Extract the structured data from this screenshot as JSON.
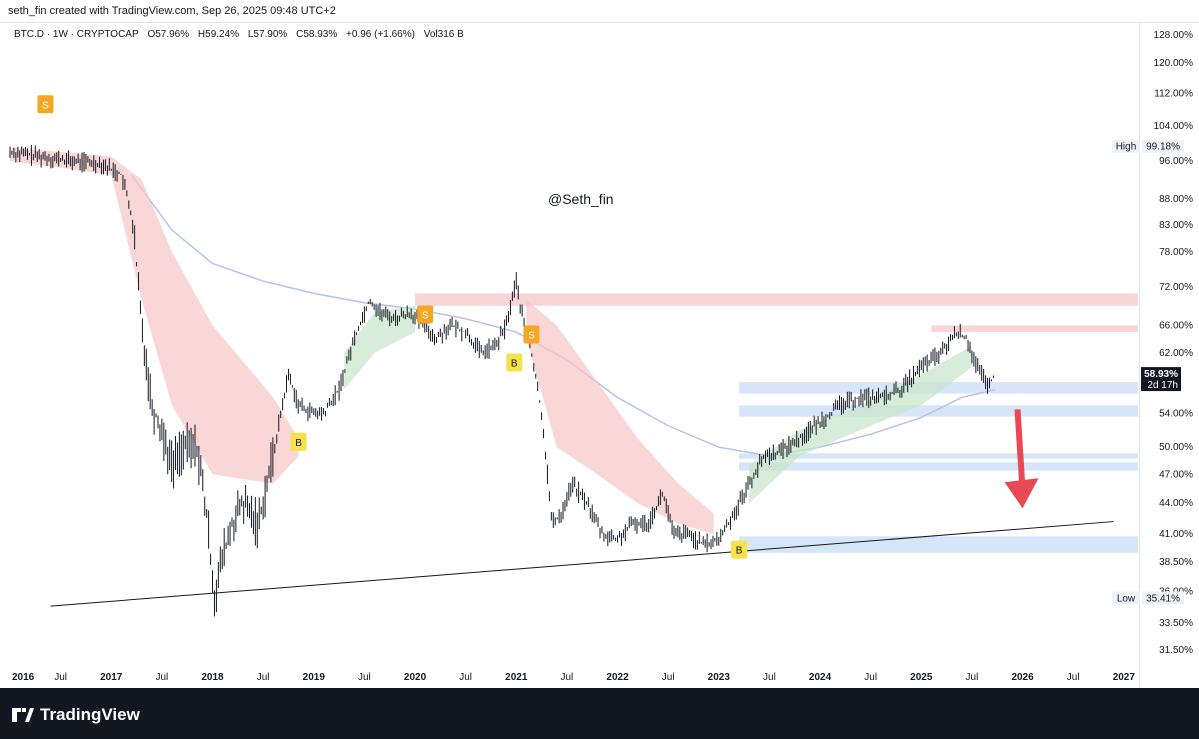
{
  "header": {
    "caption": "seth_fin created with TradingView.com, Sep 26, 2025 09:48 UTC+2"
  },
  "legend": {
    "symbol": "BTC.D · 1W · CRYPTOCAP",
    "open": "O57.96%",
    "high": "H59.24%",
    "low": "L57.90%",
    "close": "C58.93%",
    "change": "+0.96 (+1.66%)",
    "volume": "Vol316 B"
  },
  "watermark": "@Seth_fin",
  "footer": {
    "brand": "TradingView"
  },
  "price_tags": {
    "high_label": "High",
    "high_value": "99.18%",
    "low_label": "Low",
    "low_value": "35.41%",
    "current_value": "58.93%",
    "countdown": "2d 17h"
  },
  "colors": {
    "candles": "#131722",
    "upper_band": "#f7c6c6",
    "lower_band": "#c8e6c9",
    "ma": "#b6c1ef",
    "zone_red": "#f7cfd1",
    "zone_blue": "#cfe0f7",
    "sell_marker": "#f5a623",
    "buy_marker": "#f6e24a",
    "arrow": "#e84955",
    "trendline": "#131722"
  },
  "chart_data": {
    "type": "line",
    "title": "BTC.D · 1W · CRYPTOCAP",
    "y_scale": "log",
    "ylim": [
      30.5,
      130
    ],
    "xlim": [
      "2016-01",
      "2027-03"
    ],
    "y_ticks": [
      "128.00%",
      "120.00%",
      "112.00%",
      "104.00%",
      "96.00%",
      "88.00%",
      "83.00%",
      "78.00%",
      "72.00%",
      "66.00%",
      "62.00%",
      "54.00%",
      "50.00%",
      "47.00%",
      "44.00%",
      "41.00%",
      "38.50%",
      "36.00%",
      "33.50%",
      "31.50%"
    ],
    "y_tick_values": [
      128,
      120,
      112,
      104,
      96,
      88,
      83,
      78,
      72,
      66,
      62,
      54,
      50,
      47,
      44,
      41,
      38.5,
      36,
      33.5,
      31.5
    ],
    "x_ticks": [
      {
        "label": "2016",
        "x": 2016.0,
        "year": true
      },
      {
        "label": "Jul",
        "x": 2016.5,
        "year": false
      },
      {
        "label": "2017",
        "x": 2017.0,
        "year": true
      },
      {
        "label": "Jul",
        "x": 2017.5,
        "year": false
      },
      {
        "label": "2018",
        "x": 2018.0,
        "year": true
      },
      {
        "label": "Jul",
        "x": 2018.5,
        "year": false
      },
      {
        "label": "2019",
        "x": 2019.0,
        "year": true
      },
      {
        "label": "Jul",
        "x": 2019.5,
        "year": false
      },
      {
        "label": "2020",
        "x": 2020.0,
        "year": true
      },
      {
        "label": "Jul",
        "x": 2020.5,
        "year": false
      },
      {
        "label": "2021",
        "x": 2021.0,
        "year": true
      },
      {
        "label": "Jul",
        "x": 2021.5,
        "year": false
      },
      {
        "label": "2022",
        "x": 2022.0,
        "year": true
      },
      {
        "label": "Jul",
        "x": 2022.5,
        "year": false
      },
      {
        "label": "2023",
        "x": 2023.0,
        "year": true
      },
      {
        "label": "Jul",
        "x": 2023.5,
        "year": false
      },
      {
        "label": "2024",
        "x": 2024.0,
        "year": true
      },
      {
        "label": "Jul",
        "x": 2024.5,
        "year": false
      },
      {
        "label": "2025",
        "x": 2025.0,
        "year": true
      },
      {
        "label": "Jul",
        "x": 2025.5,
        "year": false
      },
      {
        "label": "2026",
        "x": 2026.0,
        "year": true
      },
      {
        "label": "Jul",
        "x": 2026.5,
        "year": false
      },
      {
        "label": "2027",
        "x": 2027.0,
        "year": true
      }
    ],
    "series": [
      {
        "x": [
          2016.0,
          2016.3,
          2016.6,
          2016.9,
          2017.1,
          2017.2,
          2017.3,
          2017.4,
          2017.5,
          2017.6,
          2017.7,
          2017.85,
          2017.95,
          2018.02,
          2018.1,
          2018.2,
          2018.3,
          2018.45,
          2018.6,
          2018.75,
          2018.85,
          2019.0,
          2019.1,
          2019.25,
          2019.4,
          2019.55,
          2019.65,
          2019.8,
          2019.95,
          2020.1,
          2020.2,
          2020.35,
          2020.5,
          2020.65,
          2020.8,
          2020.9,
          2021.0,
          2021.05,
          2021.15,
          2021.25,
          2021.35,
          2021.45,
          2021.55,
          2021.7,
          2021.85,
          2022.0,
          2022.15,
          2022.3,
          2022.45,
          2022.55,
          2022.7,
          2022.85,
          2023.0,
          2023.15,
          2023.3,
          2023.45,
          2023.6,
          2023.8,
          2024.0,
          2024.2,
          2024.4,
          2024.6,
          2024.8,
          2025.0,
          2025.2,
          2025.35,
          2025.45,
          2025.55,
          2025.65,
          2025.73
        ],
        "values": [
          98,
          97,
          96,
          95.5,
          93,
          85,
          66,
          55,
          52,
          48,
          50,
          50,
          42,
          35.5,
          39,
          42,
          44,
          42,
          49,
          59,
          55,
          54,
          54,
          57,
          64,
          70,
          68,
          67,
          68,
          66,
          64,
          66,
          65,
          62,
          63,
          66,
          73,
          68,
          62,
          54,
          42,
          43,
          46,
          44,
          41,
          40.5,
          42,
          42,
          45,
          41,
          41,
          40,
          40.5,
          43,
          46,
          49,
          49.5,
          51,
          53,
          55,
          56,
          56,
          57,
          60,
          62,
          65,
          64,
          60,
          57.5,
          58.93
        ]
      }
    ],
    "price_high": 99.18,
    "price_low": 35.41,
    "price_current": 58.93,
    "annotations": {
      "sell_signals": [
        [
          2016.35,
          109
        ],
        [
          2020.1,
          67.5
        ],
        [
          2021.15,
          64.5
        ]
      ],
      "buy_signals": [
        [
          2018.85,
          50.5
        ],
        [
          2020.98,
          60.5
        ],
        [
          2023.2,
          39.5
        ]
      ],
      "zones": [
        [
          69.0,
          71.0,
          "red"
        ],
        [
          65.0,
          66.0,
          "red"
        ],
        [
          56.5,
          58.0,
          "blue"
        ],
        [
          53.6,
          55.0,
          "blue"
        ],
        [
          48.7,
          49.3,
          "blue"
        ],
        [
          47.4,
          48.3,
          "blue"
        ],
        [
          39.3,
          40.8,
          "blue"
        ]
      ],
      "trendline": [
        [
          2016.4,
          34.8
        ],
        [
          2026.9,
          42.2
        ]
      ],
      "arrow": [
        [
          2025.95,
          54.5
        ],
        [
          2026.0,
          43.5
        ]
      ]
    }
  }
}
